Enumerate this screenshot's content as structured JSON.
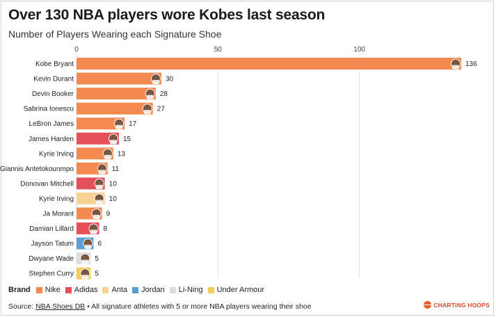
{
  "title": "Over 130 NBA players wore Kobes last season",
  "subtitle": "Number of Players Wearing each Signature Shoe",
  "colors": {
    "Nike": "#f48a4f",
    "Adidas": "#e5505a",
    "Anta": "#f7d293",
    "Jordan": "#5b9fd3",
    "Li-Ning": "#dcdcdc",
    "Under Armour": "#f3cd57"
  },
  "legend": {
    "label": "Brand",
    "items": [
      {
        "name": "Nike",
        "color": "#f48a4f"
      },
      {
        "name": "Adidas",
        "color": "#e5505a"
      },
      {
        "name": "Anta",
        "color": "#f7d293"
      },
      {
        "name": "Jordan",
        "color": "#5b9fd3"
      },
      {
        "name": "Li-Ning",
        "color": "#dcdcdc"
      },
      {
        "name": "Under Armour",
        "color": "#f3cd57"
      }
    ]
  },
  "source": {
    "prefix": "Source: ",
    "link": "NBA Shoes DB",
    "suffix": " • All signature athletes with 5 or more NBA players wearing their shoe"
  },
  "logo": {
    "text": "CHARTING HOOPS"
  },
  "chart_data": {
    "type": "bar",
    "orientation": "horizontal",
    "title": "Over 130 NBA players wore Kobes last season",
    "subtitle": "Number of Players Wearing each Signature Shoe",
    "xlim": [
      0,
      136
    ],
    "x_ticks": [
      0,
      50,
      100
    ],
    "grid": true,
    "legend_position": "bottom-left",
    "categories": [
      "Kobe Bryant",
      "Kevin Durant",
      "Devin Booker",
      "Sabrina Ionescu",
      "LeBron James",
      "James Harden",
      "Kyrie Irving",
      "Giannis Antetokounmpo",
      "Donovan Mitchell",
      "Kyrie Irving",
      "Ja Morant",
      "Damian Lillard",
      "Jayson Tatum",
      "Dwyane Wade",
      "Stephen Curry"
    ],
    "values": [
      136,
      30,
      28,
      27,
      17,
      15,
      13,
      11,
      10,
      10,
      9,
      8,
      6,
      5,
      5
    ],
    "brands": [
      "Nike",
      "Nike",
      "Nike",
      "Nike",
      "Nike",
      "Adidas",
      "Nike",
      "Nike",
      "Adidas",
      "Anta",
      "Nike",
      "Adidas",
      "Jordan",
      "Li-Ning",
      "Under Armour"
    ]
  }
}
